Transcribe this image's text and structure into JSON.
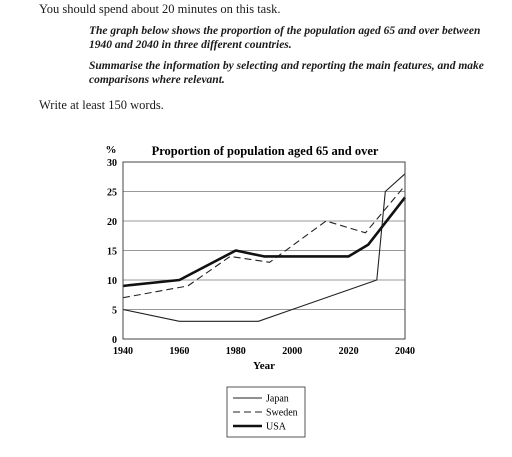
{
  "instructions": {
    "time": "You should spend about 20 minutes on this task.",
    "description": "The graph below shows the proportion of the population aged 65 and over between 1940 and 2040 in three different countries.",
    "summarise": "Summarise the information by selecting and reporting the main features, and make comparisons where relevant.",
    "words": "Write at least 150 words."
  },
  "chart_data": {
    "type": "line",
    "title": "Proportion of population aged 65 and over",
    "xlabel": "Year",
    "ylabel": "%",
    "xlim": [
      1940,
      2040
    ],
    "ylim": [
      0,
      30
    ],
    "xticks": [
      "1940",
      "1960",
      "1980",
      "2000",
      "2020",
      "2040"
    ],
    "yticks": [
      "0",
      "5",
      "10",
      "15",
      "20",
      "25",
      "30"
    ],
    "grid": "horizontal",
    "legend_position": "bottom-center",
    "series": [
      {
        "name": "Japan",
        "style": "thin-solid",
        "x": [
          1940,
          1960,
          1970,
          1988,
          2000,
          2030,
          2033,
          2040
        ],
        "y": [
          5,
          3,
          3,
          3,
          5,
          10,
          25,
          28
        ]
      },
      {
        "name": "Sweden",
        "style": "dashed",
        "x": [
          1940,
          1963,
          1978,
          1992,
          2012,
          2026,
          2040
        ],
        "y": [
          7,
          9,
          14,
          13,
          20,
          18,
          26
        ]
      },
      {
        "name": "USA",
        "style": "thick-solid",
        "x": [
          1940,
          1960,
          1980,
          1990,
          2020,
          2027,
          2040
        ],
        "y": [
          9,
          10,
          15,
          14,
          14,
          16,
          24
        ]
      }
    ]
  }
}
